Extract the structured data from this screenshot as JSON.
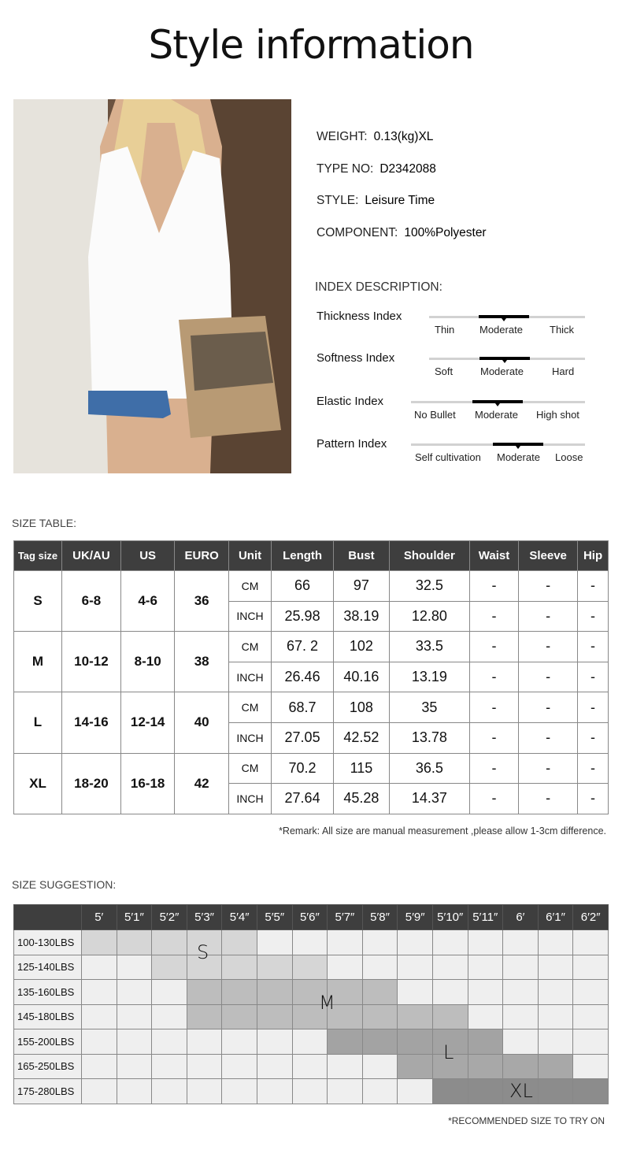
{
  "title": "Style information",
  "specs": [
    {
      "label": "WEIGHT:",
      "value": "0.13(kg)XL"
    },
    {
      "label": "TYPE NO:",
      "value": "D2342088"
    },
    {
      "label": "STYLE:",
      "value": "Leisure Time"
    },
    {
      "label": "COMPONENT:",
      "value": "100%Polyester"
    }
  ],
  "index_title": "INDEX DESCRIPTION:",
  "indexes": [
    {
      "name": "Thickness Index",
      "options": [
        "Thin",
        "Moderate",
        "Thick"
      ],
      "selected": "Moderate"
    },
    {
      "name": "Softness Index",
      "options": [
        "Soft",
        "Moderate",
        "Hard"
      ],
      "selected": "Moderate"
    },
    {
      "name": "Elastic Index",
      "options": [
        "No Bullet",
        "Moderate",
        "High shot"
      ],
      "selected": "Moderate"
    },
    {
      "name": "Pattern Index",
      "options": [
        "Self cultivation",
        "Moderate",
        "Loose"
      ],
      "selected": "Moderate"
    }
  ],
  "size_table": {
    "title": "SIZE TABLE:",
    "headers": [
      "Tag size",
      "UK/AU",
      "US",
      "EURO",
      "Unit",
      "Length",
      "Bust",
      "Shoulder",
      "Waist",
      "Sleeve",
      "Hip"
    ],
    "sizes": [
      {
        "tag": "S",
        "uk": "6-8",
        "us": "4-6",
        "euro": "36",
        "rows": [
          [
            "CM",
            "66",
            "97",
            "32.5",
            "-",
            "-",
            "-"
          ],
          [
            "INCH",
            "25.98",
            "38.19",
            "12.80",
            "-",
            "-",
            "-"
          ]
        ]
      },
      {
        "tag": "M",
        "uk": "10-12",
        "us": "8-10",
        "euro": "38",
        "rows": [
          [
            "CM",
            "67. 2",
            "102",
            "33.5",
            "-",
            "-",
            "-"
          ],
          [
            "INCH",
            "26.46",
            "40.16",
            "13.19",
            "-",
            "-",
            "-"
          ]
        ]
      },
      {
        "tag": "L",
        "uk": "14-16",
        "us": "12-14",
        "euro": "40",
        "rows": [
          [
            "CM",
            "68.7",
            "108",
            "35",
            "-",
            "-",
            "-"
          ],
          [
            "INCH",
            "27.05",
            "42.52",
            "13.78",
            "-",
            "-",
            "-"
          ]
        ]
      },
      {
        "tag": "XL",
        "uk": "18-20",
        "us": "16-18",
        "euro": "42",
        "rows": [
          [
            "CM",
            "70.2",
            "115",
            "36.5",
            "-",
            "-",
            "-"
          ],
          [
            "INCH",
            "27.64",
            "45.28",
            "14.37",
            "-",
            "-",
            "-"
          ]
        ]
      }
    ],
    "remark": "*Remark: All size are manual measurement ,please allow 1-3cm difference."
  },
  "size_suggestion": {
    "title": "SIZE SUGGESTION:",
    "heights": [
      "5′",
      "5′1″",
      "5′2″",
      "5′3″",
      "5′4″",
      "5′5″",
      "5′6″",
      "5′7″",
      "5′8″",
      "5′9″",
      "5′10″",
      "5′11″",
      "6′",
      "6′1″",
      "6′2″"
    ],
    "weights": [
      "100-130LBS",
      "125-140LBS",
      "135-160LBS",
      "145-180LBS",
      "155-200LBS",
      "165-250LBS",
      "175-280LBS"
    ],
    "ranges": [
      {
        "size": "S",
        "cells": [
          [
            0,
            0,
            4
          ],
          [
            1,
            2,
            6
          ]
        ]
      },
      {
        "size": "M",
        "cells": [
          [
            2,
            3,
            8
          ],
          [
            3,
            3,
            10
          ]
        ]
      },
      {
        "size": "L",
        "cells": [
          [
            4,
            7,
            11
          ],
          [
            5,
            9,
            13
          ]
        ]
      },
      {
        "size": "XL",
        "cells": [
          [
            6,
            10,
            14
          ]
        ]
      }
    ],
    "colors": {
      "S": "#d6d6d6",
      "M": "#bdbdbd",
      "L": "#a3a3a3",
      "XL": "#8c8c8c",
      "empty": "#efefef",
      "header": "#3e3e3e"
    },
    "note": "*RECOMMENDED SIZE TO TRY ON"
  }
}
